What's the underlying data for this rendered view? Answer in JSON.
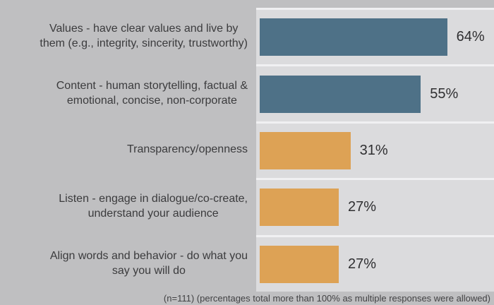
{
  "chart_data": {
    "type": "bar",
    "orientation": "horizontal",
    "title": "",
    "xlabel": "",
    "ylabel": "",
    "xlim": [
      0,
      80
    ],
    "grid": false,
    "legend": false,
    "categories": [
      "Values - have clear values and live by them (e.g., integrity, sincerity, trustworthy)",
      "Content - human storytelling, factual & emotional, concise, non-corporate",
      "Transparency/openness",
      "Listen - engage in dialogue/co-create, understand your audience",
      "Align words and behavior - do what you say you will do"
    ],
    "category_lines": [
      [
        "Values - have clear values and live by",
        "them (e.g., integrity, sincerity, trustworthy)"
      ],
      [
        "Content - human storytelling, factual &",
        "emotional, concise, non-corporate"
      ],
      [
        "Transparency/openness"
      ],
      [
        "Listen - engage in dialogue/co-create,",
        "understand your audience"
      ],
      [
        "Align words and behavior - do what you",
        "say you will do"
      ]
    ],
    "values": [
      64,
      55,
      31,
      27,
      27
    ],
    "value_labels": [
      "64%",
      "55%",
      "31%",
      "27%",
      "27%"
    ],
    "bar_colors": [
      "#4e7187",
      "#4e7187",
      "#dda255",
      "#dda255",
      "#dda255"
    ],
    "footnote": "(n=111) (percentages total more than 100% as multiple responses were allowed)"
  },
  "colors": {
    "background": "#bfbfc1",
    "panel": "#dbdbdd",
    "separator": "#f0f0f2",
    "blue": "#4e7187",
    "orange": "#dda255",
    "label_text": "#3b3b3d",
    "value_text": "#2f2f31",
    "footnote_text": "#424244"
  }
}
